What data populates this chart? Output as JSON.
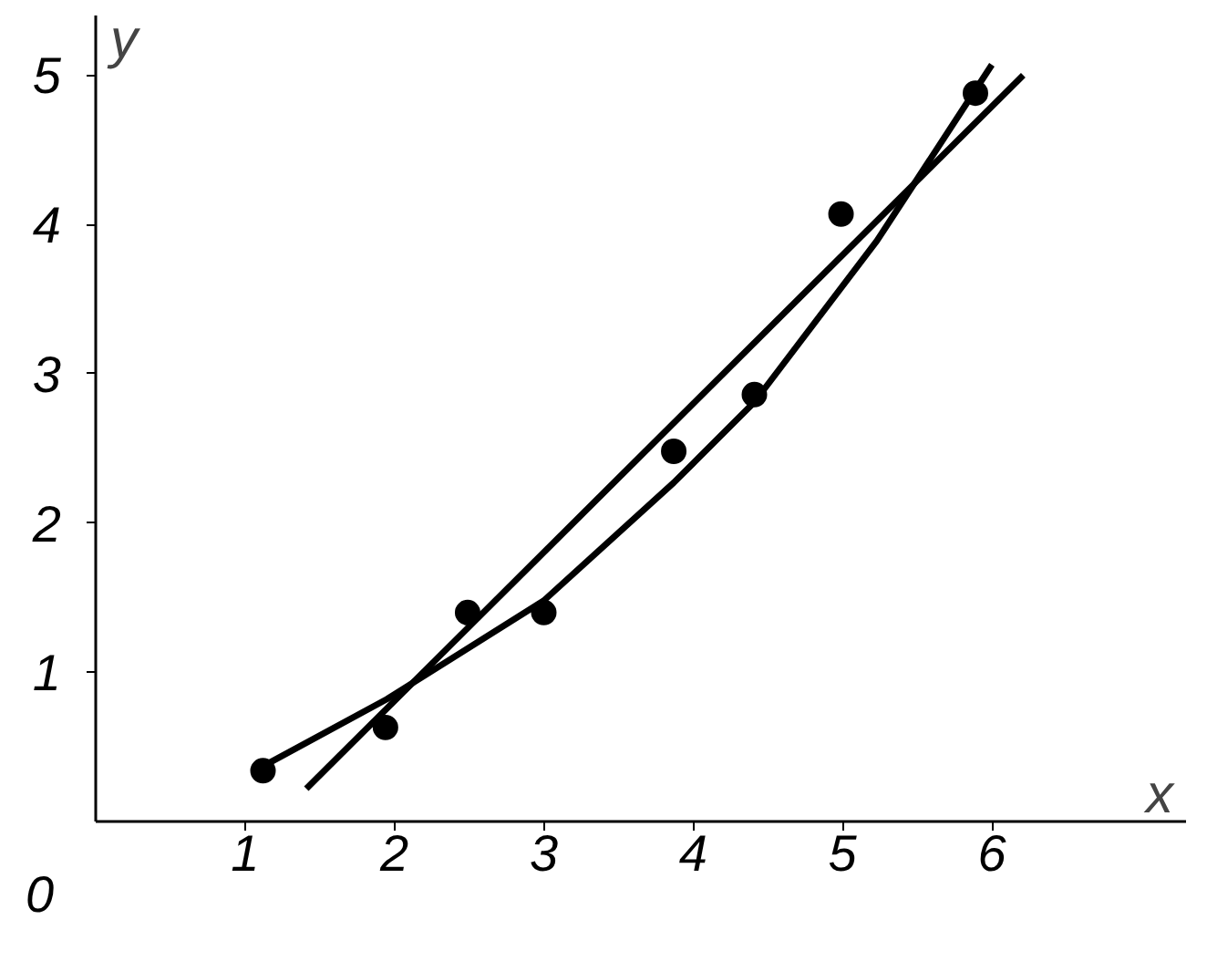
{
  "chart_data": {
    "type": "scatter",
    "xlabel": "x",
    "ylabel": "y",
    "annotations": [
      "0"
    ],
    "xlim": [
      0,
      7.3
    ],
    "ylim": [
      0,
      5.4
    ],
    "xticks": [
      1,
      2,
      3,
      4,
      5,
      6
    ],
    "yticks": [
      1,
      2,
      3,
      4,
      5
    ],
    "grid": false,
    "marker": "circle",
    "series": [
      {
        "color": "#000000",
        "x": [
          1.12,
          1.94,
          2.49,
          3.0,
          3.87,
          4.41,
          4.99,
          5.89
        ],
        "values": [
          0.34,
          0.63,
          1.4,
          1.4,
          2.48,
          2.86,
          4.07,
          4.88
        ]
      },
      {
        "type": "line",
        "marker": "none",
        "color": "#000000",
        "x": [
          1.41,
          6.21
        ],
        "values": [
          0.22,
          5.0
        ]
      },
      {
        "type": "line",
        "marker": "none",
        "color": "#000000",
        "x": [
          1.12,
          1.95,
          3.0,
          3.87,
          4.41,
          5.23,
          6.0
        ],
        "values": [
          0.37,
          0.82,
          1.48,
          2.27,
          2.81,
          3.89,
          5.07
        ]
      }
    ]
  }
}
